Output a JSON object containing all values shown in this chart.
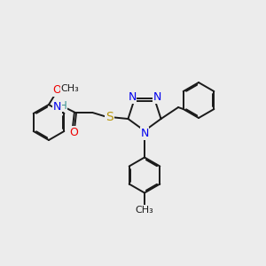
{
  "bg_color": "#ececec",
  "bond_color": "#1a1a1a",
  "N_color": "#0000ee",
  "O_color": "#ee0000",
  "S_color": "#b8960a",
  "H_color": "#3a9090",
  "font_size": 8.5,
  "bond_width": 1.4,
  "figsize": [
    3.0,
    3.0
  ],
  "dpi": 100,
  "xlim": [
    0.0,
    3.0
  ],
  "ylim": [
    0.0,
    3.0
  ]
}
